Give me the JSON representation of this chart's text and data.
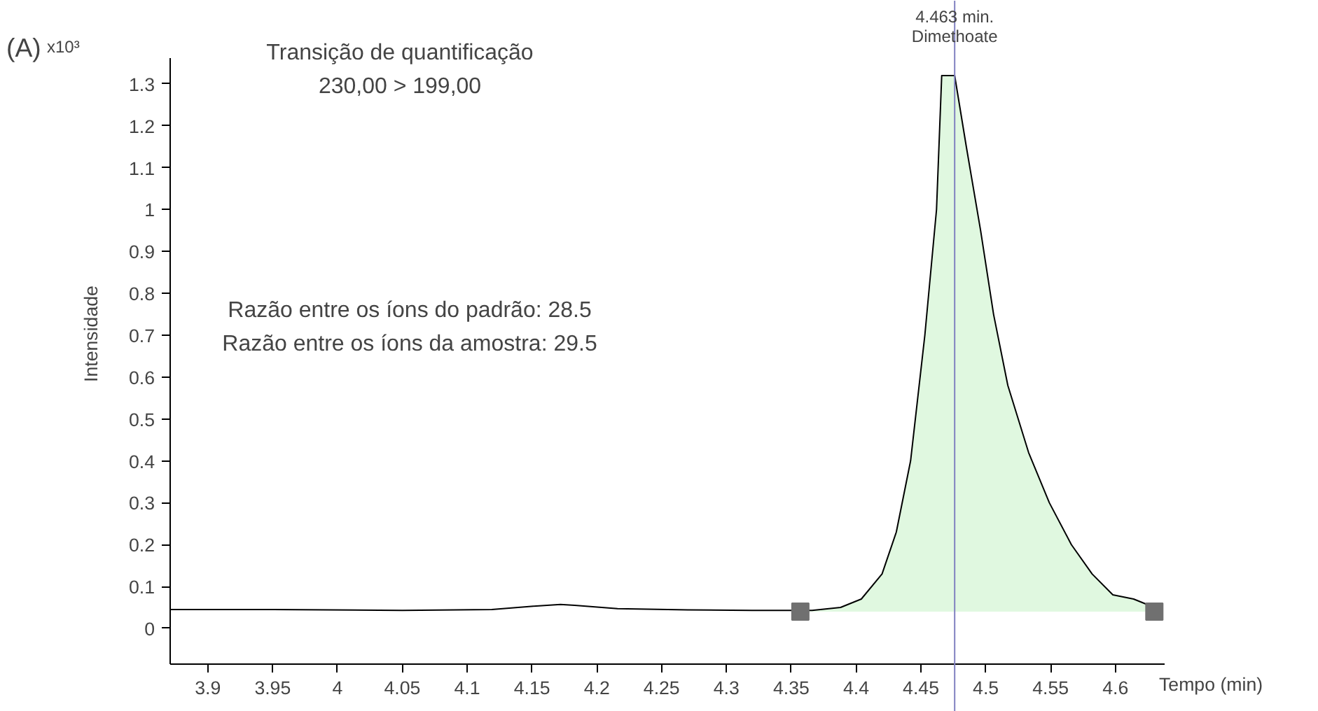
{
  "chart_data": {
    "type": "line",
    "xlabel": "Tempo (min)",
    "ylabel": "Intensidade",
    "xlim": [
      3.871,
      4.638
    ],
    "ylim": [
      -0.087,
      1.363
    ],
    "xticks": [
      3.9,
      3.95,
      4,
      4.05,
      4.1,
      4.15,
      4.2,
      4.25,
      4.3,
      4.35,
      4.4,
      4.45,
      4.5,
      4.55,
      4.6
    ],
    "yticks": [
      0,
      0.1,
      0.2,
      0.3,
      0.4,
      0.5,
      0.6,
      0.7,
      0.8,
      0.9,
      1,
      1.1,
      1.2,
      1.3
    ],
    "grid": false,
    "series": [
      {
        "type": "area",
        "color": "#e0f8e0",
        "x": [
          4.357,
          4.366,
          4.388,
          4.404,
          4.42,
          4.431,
          4.442,
          4.453,
          4.462,
          4.466,
          4.476,
          4.485,
          4.496,
          4.506,
          4.517,
          4.533,
          4.549,
          4.566,
          4.582,
          4.598,
          4.614,
          4.63
        ],
        "values": [
          0.04,
          0.043,
          0.05,
          0.07,
          0.13,
          0.23,
          0.4,
          0.7,
          1.0,
          1.32,
          1.32,
          1.15,
          0.95,
          0.75,
          0.58,
          0.42,
          0.3,
          0.2,
          0.13,
          0.08,
          0.07,
          0.05
        ]
      },
      {
        "color": "#000000",
        "x": [
          3.871,
          3.95,
          4.05,
          4.119,
          4.151,
          4.172,
          4.183,
          4.216,
          4.27,
          4.32,
          4.366,
          4.388,
          4.404,
          4.42,
          4.431,
          4.442,
          4.453,
          4.462,
          4.466,
          4.476,
          4.485,
          4.496,
          4.506,
          4.517,
          4.533,
          4.549,
          4.566,
          4.582,
          4.598,
          4.614,
          4.63
        ],
        "values": [
          0.045,
          0.045,
          0.043,
          0.045,
          0.053,
          0.057,
          0.055,
          0.047,
          0.044,
          0.043,
          0.043,
          0.05,
          0.07,
          0.13,
          0.23,
          0.4,
          0.7,
          1.0,
          1.32,
          1.32,
          1.15,
          0.95,
          0.75,
          0.58,
          0.42,
          0.3,
          0.2,
          0.13,
          0.08,
          0.07,
          0.05
        ]
      },
      {
        "type": "scatter",
        "marker": "square",
        "color": "#707070",
        "x": [
          4.357,
          4.63
        ],
        "values": [
          0.04,
          0.04
        ]
      }
    ],
    "ref_lines": [
      {
        "axis": "x",
        "value": 4.476,
        "label": "4.463 min.\nDimethoate",
        "color": "#8080c0"
      }
    ],
    "annotations": [
      "(A)",
      "x10³",
      "Transição de quantificação\n230,00 > 199,00",
      "Razão entre os íons do padrão: 28.5\nRazão entre os íons da amostra: 29.5"
    ]
  }
}
